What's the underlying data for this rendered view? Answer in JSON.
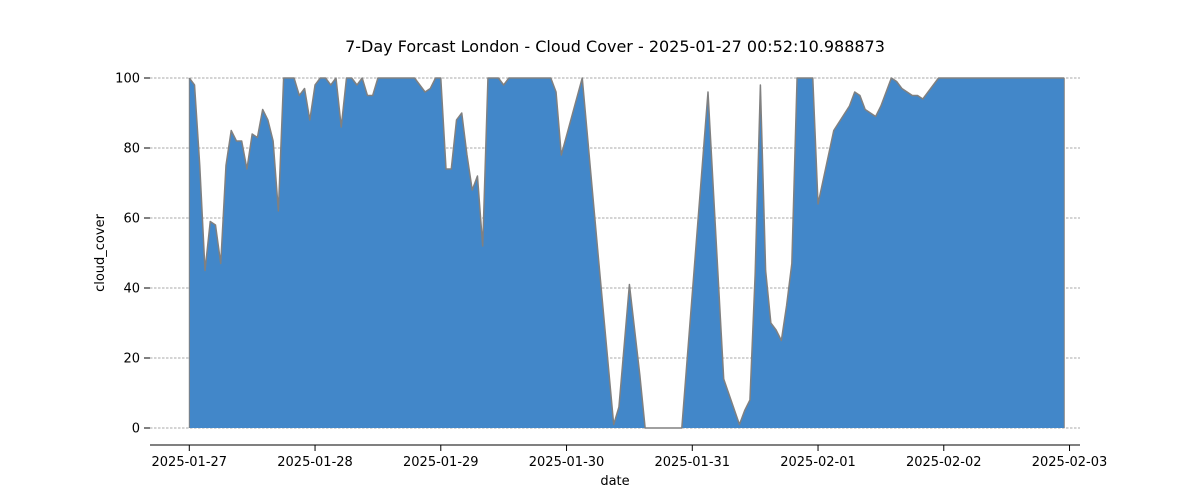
{
  "chart_data": {
    "type": "area",
    "title": "7-Day Forcast London - Cloud Cover - 2025-01-27 00:52:10.988873",
    "xlabel": "date",
    "ylabel": "cloud_cover",
    "ylim": [
      0,
      100
    ],
    "xlim": [
      "2025-01-26T16:30",
      "2025-02-03T02:00"
    ],
    "yticks": [
      0,
      20,
      40,
      60,
      80,
      100
    ],
    "xticks": [
      "2025-01-27",
      "2025-01-28",
      "2025-01-29",
      "2025-01-30",
      "2025-01-31",
      "2025-02-01",
      "2025-02-02",
      "2025-02-03"
    ],
    "grid": "horizontal",
    "colors": {
      "fill": "#4287c9",
      "line": "#808080"
    },
    "series": [
      {
        "x": [
          "2025-01-27T00:00",
          "2025-01-27T01:00",
          "2025-01-27T02:00",
          "2025-01-27T03:00",
          "2025-01-27T04:00",
          "2025-01-27T05:00",
          "2025-01-27T06:00",
          "2025-01-27T07:00",
          "2025-01-27T08:00",
          "2025-01-27T09:00",
          "2025-01-27T10:00",
          "2025-01-27T11:00",
          "2025-01-27T12:00",
          "2025-01-27T13:00",
          "2025-01-27T14:00",
          "2025-01-27T15:00",
          "2025-01-27T16:00",
          "2025-01-27T17:00",
          "2025-01-27T18:00",
          "2025-01-27T19:00",
          "2025-01-27T20:00",
          "2025-01-27T21:00",
          "2025-01-27T22:00",
          "2025-01-27T23:00",
          "2025-01-28T00:00",
          "2025-01-28T01:00",
          "2025-01-28T02:00",
          "2025-01-28T03:00",
          "2025-01-28T04:00",
          "2025-01-28T05:00",
          "2025-01-28T06:00",
          "2025-01-28T07:00",
          "2025-01-28T08:00",
          "2025-01-28T09:00",
          "2025-01-28T10:00",
          "2025-01-28T11:00",
          "2025-01-28T12:00",
          "2025-01-28T13:00",
          "2025-01-28T14:00",
          "2025-01-28T15:00",
          "2025-01-28T16:00",
          "2025-01-28T17:00",
          "2025-01-28T18:00",
          "2025-01-28T19:00",
          "2025-01-28T20:00",
          "2025-01-28T21:00",
          "2025-01-28T22:00",
          "2025-01-28T23:00",
          "2025-01-29T00:00",
          "2025-01-29T01:00",
          "2025-01-29T02:00",
          "2025-01-29T03:00",
          "2025-01-29T04:00",
          "2025-01-29T05:00",
          "2025-01-29T06:00",
          "2025-01-29T07:00",
          "2025-01-29T08:00",
          "2025-01-29T09:00",
          "2025-01-29T10:00",
          "2025-01-29T11:00",
          "2025-01-29T12:00",
          "2025-01-29T13:00",
          "2025-01-29T14:00",
          "2025-01-29T15:00",
          "2025-01-29T16:00",
          "2025-01-29T17:00",
          "2025-01-29T18:00",
          "2025-01-29T19:00",
          "2025-01-29T20:00",
          "2025-01-29T21:00",
          "2025-01-29T22:00",
          "2025-01-29T23:00",
          "2025-01-30T03:00",
          "2025-01-30T06:00",
          "2025-01-30T09:00",
          "2025-01-30T10:00",
          "2025-01-30T12:00",
          "2025-01-30T14:00",
          "2025-01-30T15:00",
          "2025-01-30T18:00",
          "2025-01-30T21:00",
          "2025-01-30T22:00",
          "2025-01-31T03:00",
          "2025-01-31T06:00",
          "2025-01-31T09:00",
          "2025-01-31T10:00",
          "2025-01-31T11:00",
          "2025-01-31T12:00",
          "2025-01-31T13:00",
          "2025-01-31T14:00",
          "2025-01-31T15:00",
          "2025-01-31T16:00",
          "2025-01-31T17:00",
          "2025-01-31T18:00",
          "2025-01-31T19:00",
          "2025-01-31T20:00",
          "2025-01-31T21:00",
          "2025-01-31T22:00",
          "2025-01-31T23:00",
          "2025-02-01T00:00",
          "2025-02-01T03:00",
          "2025-02-01T06:00",
          "2025-02-01T07:00",
          "2025-02-01T08:00",
          "2025-02-01T09:00",
          "2025-02-01T11:00",
          "2025-02-01T12:00",
          "2025-02-01T13:00",
          "2025-02-01T14:00",
          "2025-02-01T15:00",
          "2025-02-01T16:00",
          "2025-02-01T17:00",
          "2025-02-01T18:00",
          "2025-02-01T19:00",
          "2025-02-01T20:00",
          "2025-02-01T21:00",
          "2025-02-01T22:00",
          "2025-02-01T23:00",
          "2025-02-02T00:00",
          "2025-02-02T01:00",
          "2025-02-02T02:00",
          "2025-02-02T03:00",
          "2025-02-02T04:00",
          "2025-02-02T05:00",
          "2025-02-02T06:00",
          "2025-02-02T09:00",
          "2025-02-02T12:00",
          "2025-02-02T15:00",
          "2025-02-02T18:00",
          "2025-02-02T21:00",
          "2025-02-02T23:00"
        ],
        "values": [
          100,
          98,
          75,
          45,
          59,
          58,
          47,
          75,
          85,
          82,
          82,
          74,
          84,
          83,
          91,
          88,
          82,
          62,
          100,
          100,
          100,
          95,
          97,
          88,
          98,
          100,
          100,
          98,
          100,
          86,
          100,
          100,
          98,
          100,
          95,
          95,
          100,
          100,
          100,
          100,
          100,
          100,
          100,
          100,
          98,
          96,
          97,
          100,
          100,
          74,
          74,
          88,
          90,
          78,
          68,
          72,
          52,
          100,
          100,
          100,
          98,
          100,
          100,
          100,
          100,
          100,
          100,
          100,
          100,
          100,
          96,
          78,
          100,
          50,
          1,
          6,
          41,
          15,
          0,
          0,
          0,
          0,
          96,
          14,
          1,
          5,
          8,
          44,
          98,
          45,
          30,
          28,
          25,
          35,
          47,
          100,
          100,
          100,
          100,
          64,
          85,
          92,
          96,
          95,
          91,
          89,
          92,
          96,
          100,
          99,
          97,
          96,
          95,
          95,
          94,
          96,
          98,
          100,
          100,
          100,
          100,
          100,
          100,
          100,
          100,
          100,
          100,
          100,
          100,
          100,
          100
        ]
      }
    ]
  }
}
